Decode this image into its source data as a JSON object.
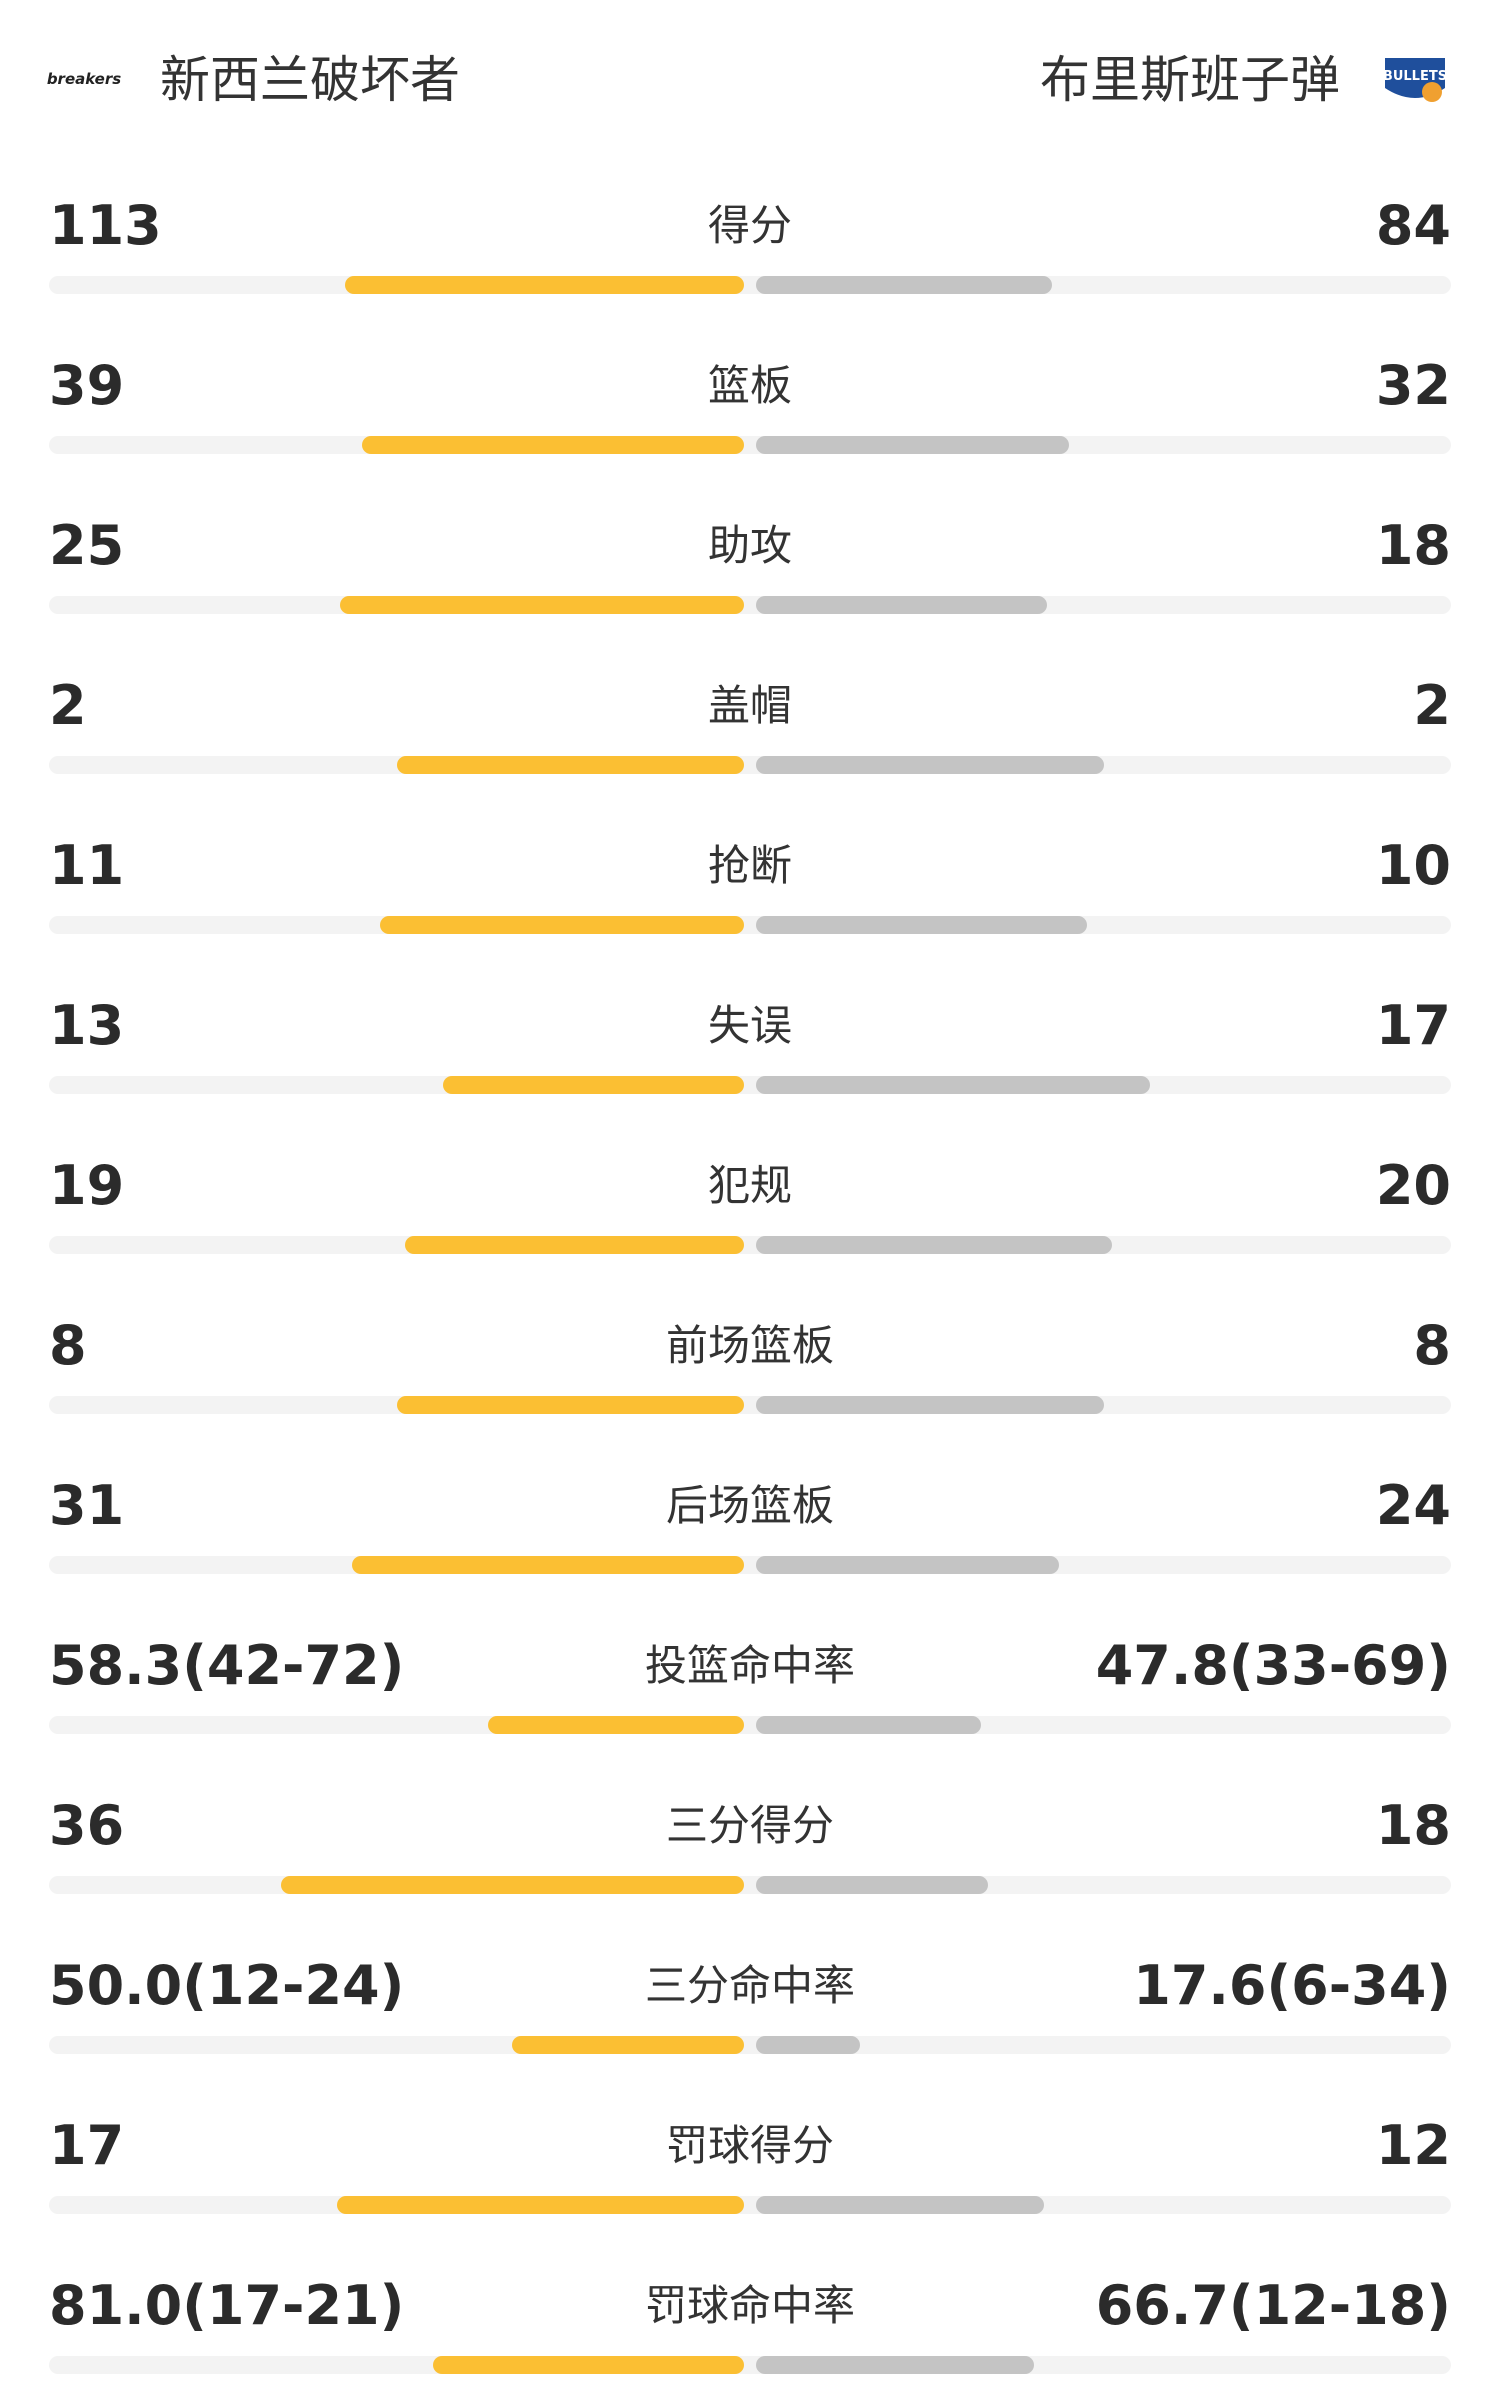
{
  "header": {
    "home_logo": "breakers",
    "home": "新西兰破坏者",
    "away": "布里斯班子弹",
    "away_logo": "BULLETS"
  },
  "rows": [
    {
      "label": "得分",
      "left": 113,
      "right": 84
    },
    {
      "label": "篮板",
      "left": 39,
      "right": 32
    },
    {
      "label": "助攻",
      "left": 25,
      "right": 18
    },
    {
      "label": "盖帽",
      "left": 2,
      "right": 2
    },
    {
      "label": "抢断",
      "left": 11,
      "right": 10
    },
    {
      "label": "失误",
      "left": 13,
      "right": 17
    },
    {
      "label": "犯规",
      "left": 19,
      "right": 20
    },
    {
      "label": "前场篮板",
      "left": 8,
      "right": 8
    },
    {
      "label": "后场篮板",
      "left": 31,
      "right": 24
    },
    {
      "label": "投篮命中率",
      "left": 58.3,
      "right": 47.8,
      "left_label": "58.3(42-72)",
      "right_label": "47.8(33-69)",
      "left_made": 42,
      "left_attempts": 72,
      "right_made": 33,
      "right_attempts": 69
    },
    {
      "label": "三分得分",
      "left": 36,
      "right": 18
    },
    {
      "label": "三分命中率",
      "left": 50.0,
      "right": 17.6,
      "left_label": "50.0(12-24)",
      "right_label": "17.6(6-34)",
      "left_made": 12,
      "left_attempts": 24,
      "right_made": 6,
      "right_attempts": 34
    },
    {
      "label": "罚球得分",
      "left": 17,
      "right": 12
    },
    {
      "label": "罚球命中率",
      "left": 81.0,
      "right": 66.7,
      "left_label": "81.0(17-21)",
      "right_label": "66.7(12-18)",
      "left_made": 17,
      "left_attempts": 21,
      "right_made": 12,
      "right_attempts": 18
    }
  ],
  "colors": {
    "left": "#fbbf33",
    "right": "#c4c4c4",
    "track": "#f3f3f3"
  }
}
